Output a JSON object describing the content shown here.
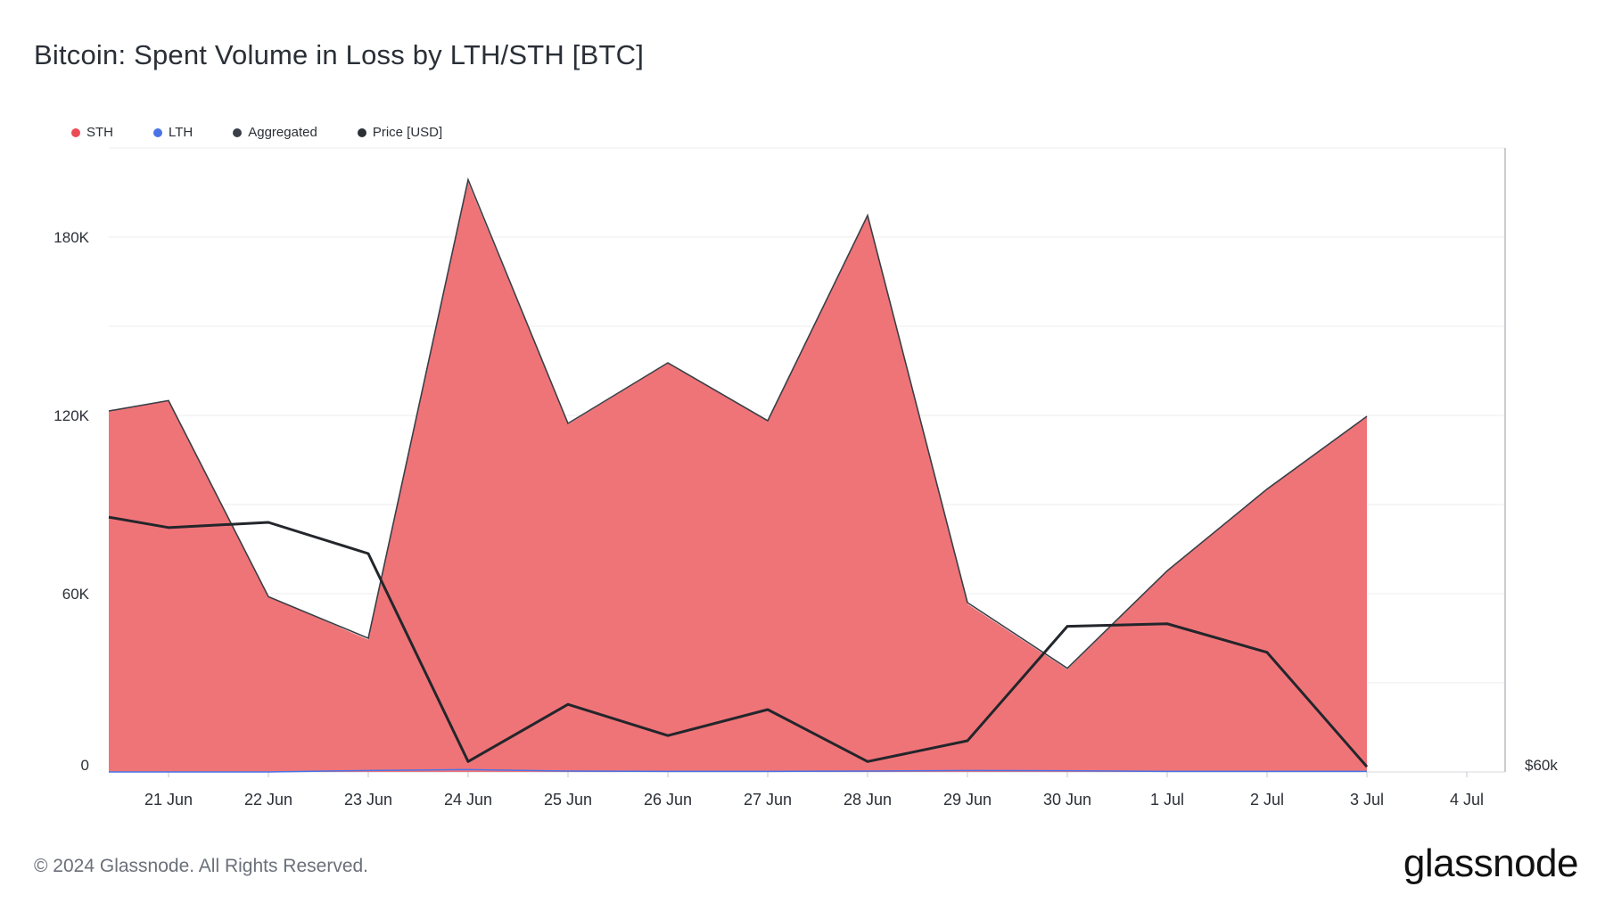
{
  "header": {
    "title": "Bitcoin: Spent Volume in Loss by LTH/STH [BTC]"
  },
  "legend": {
    "items": [
      {
        "label": "STH",
        "color": "#ea4c55"
      },
      {
        "label": "LTH",
        "color": "#4a73e8"
      },
      {
        "label": "Aggregated",
        "color": "#3a3f47"
      },
      {
        "label": "Price [USD]",
        "color": "#2b2f36"
      }
    ]
  },
  "footer": {
    "copyright": "© 2024 Glassnode. All Rights Reserved.",
    "brand": "glassnode"
  },
  "chart_data": {
    "type": "area",
    "title": "Bitcoin: Spent Volume in Loss by LTH/STH [BTC]",
    "x_tick_labels": [
      "21 Jun",
      "22 Jun",
      "23 Jun",
      "24 Jun",
      "25 Jun",
      "26 Jun",
      "27 Jun",
      "28 Jun",
      "29 Jun",
      "30 Jun",
      "1 Jul",
      "2 Jul",
      "3 Jul",
      "4 Jul"
    ],
    "y_tick_labels": [
      "0",
      "60K",
      "120K",
      "180K"
    ],
    "y_ticks": [
      0,
      60000,
      120000,
      180000
    ],
    "ylim": [
      0,
      210000
    ],
    "y2_tick_labels": [
      "$60k"
    ],
    "y2_ticks": [
      60000
    ],
    "y2lim": [
      60000,
      72000
    ],
    "grid": true,
    "legend_position": "top-left",
    "x": [
      "2024-06-20",
      "2024-06-21",
      "2024-06-22",
      "2024-06-23",
      "2024-06-24",
      "2024-06-25",
      "2024-06-26",
      "2024-06-27",
      "2024-06-28",
      "2024-06-29",
      "2024-06-30",
      "2024-07-01",
      "2024-07-02",
      "2024-07-03"
    ],
    "series": [
      {
        "name": "STH",
        "values": [
          121500,
          125000,
          59000,
          44500,
          198500,
          117000,
          137500,
          118000,
          187000,
          56500,
          34500,
          67500,
          95000,
          119500
        ]
      },
      {
        "name": "LTH",
        "values": [
          0,
          0,
          0,
          500,
          800,
          300,
          200,
          200,
          300,
          500,
          400,
          200,
          200,
          200
        ]
      },
      {
        "name": "Aggregated",
        "values": [
          121500,
          125000,
          59000,
          45000,
          199300,
          117300,
          137700,
          118200,
          187300,
          57000,
          34900,
          67700,
          95200,
          119700
        ]
      },
      {
        "name": "Price [USD]",
        "values": [
          64900,
          64700,
          64800,
          64200,
          60200,
          61300,
          60700,
          61200,
          60200,
          60600,
          62800,
          62850,
          62300,
          60100
        ]
      }
    ]
  }
}
